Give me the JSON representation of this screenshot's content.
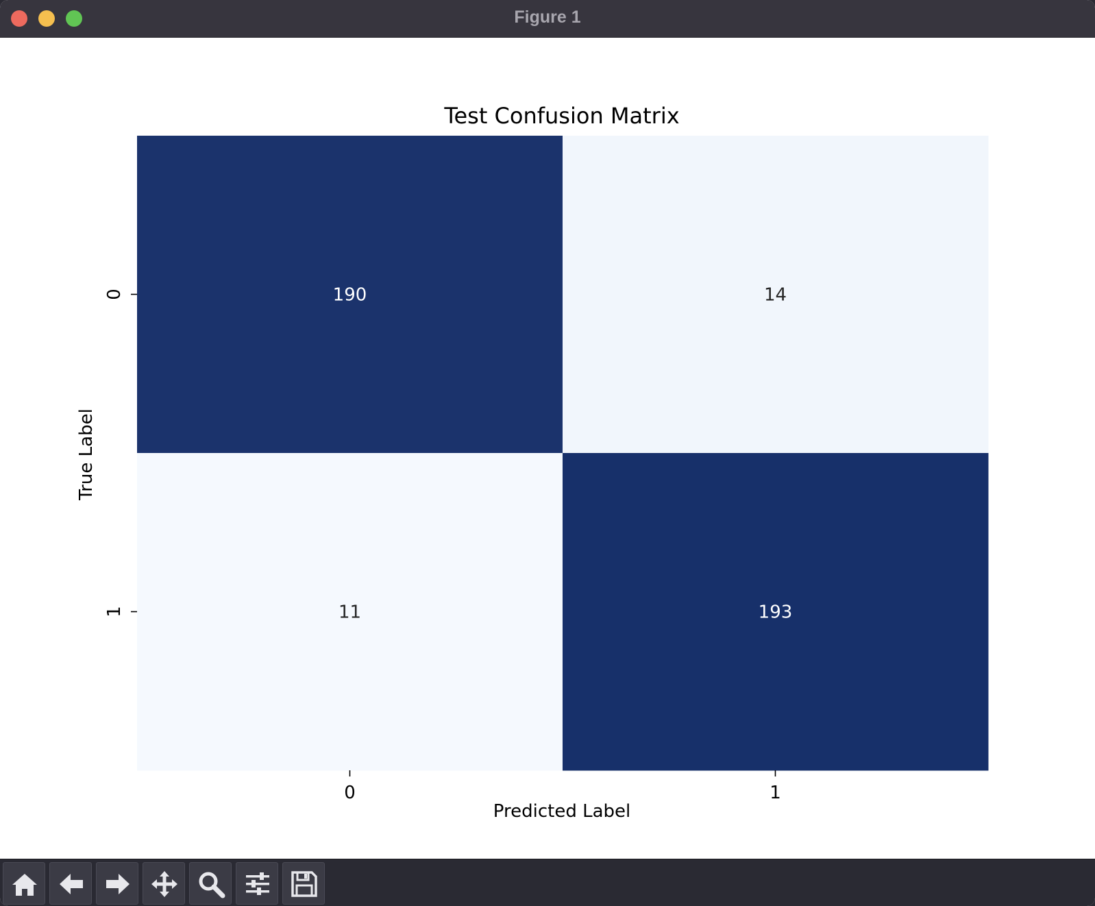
{
  "window": {
    "title": "Figure 1"
  },
  "toolbar": {
    "tools": [
      {
        "name": "home-icon"
      },
      {
        "name": "back-arrow-icon"
      },
      {
        "name": "forward-arrow-icon"
      },
      {
        "name": "pan-icon"
      },
      {
        "name": "zoom-icon"
      },
      {
        "name": "configure-subplots-icon"
      },
      {
        "name": "save-icon"
      }
    ]
  },
  "chart_data": {
    "type": "heatmap",
    "title": "Test Confusion Matrix",
    "xlabel": "Predicted Label",
    "ylabel": "True Label",
    "x_categories": [
      "0",
      "1"
    ],
    "y_categories": [
      "0",
      "1"
    ],
    "values": [
      [
        190,
        14
      ],
      [
        11,
        193
      ]
    ],
    "colormap": "Blues",
    "colors": {
      "high": "#17306a",
      "low": "#f5f9fe",
      "high_text": "#ffffff",
      "low_text": "#262626"
    },
    "colorbar": false,
    "grid": false
  }
}
